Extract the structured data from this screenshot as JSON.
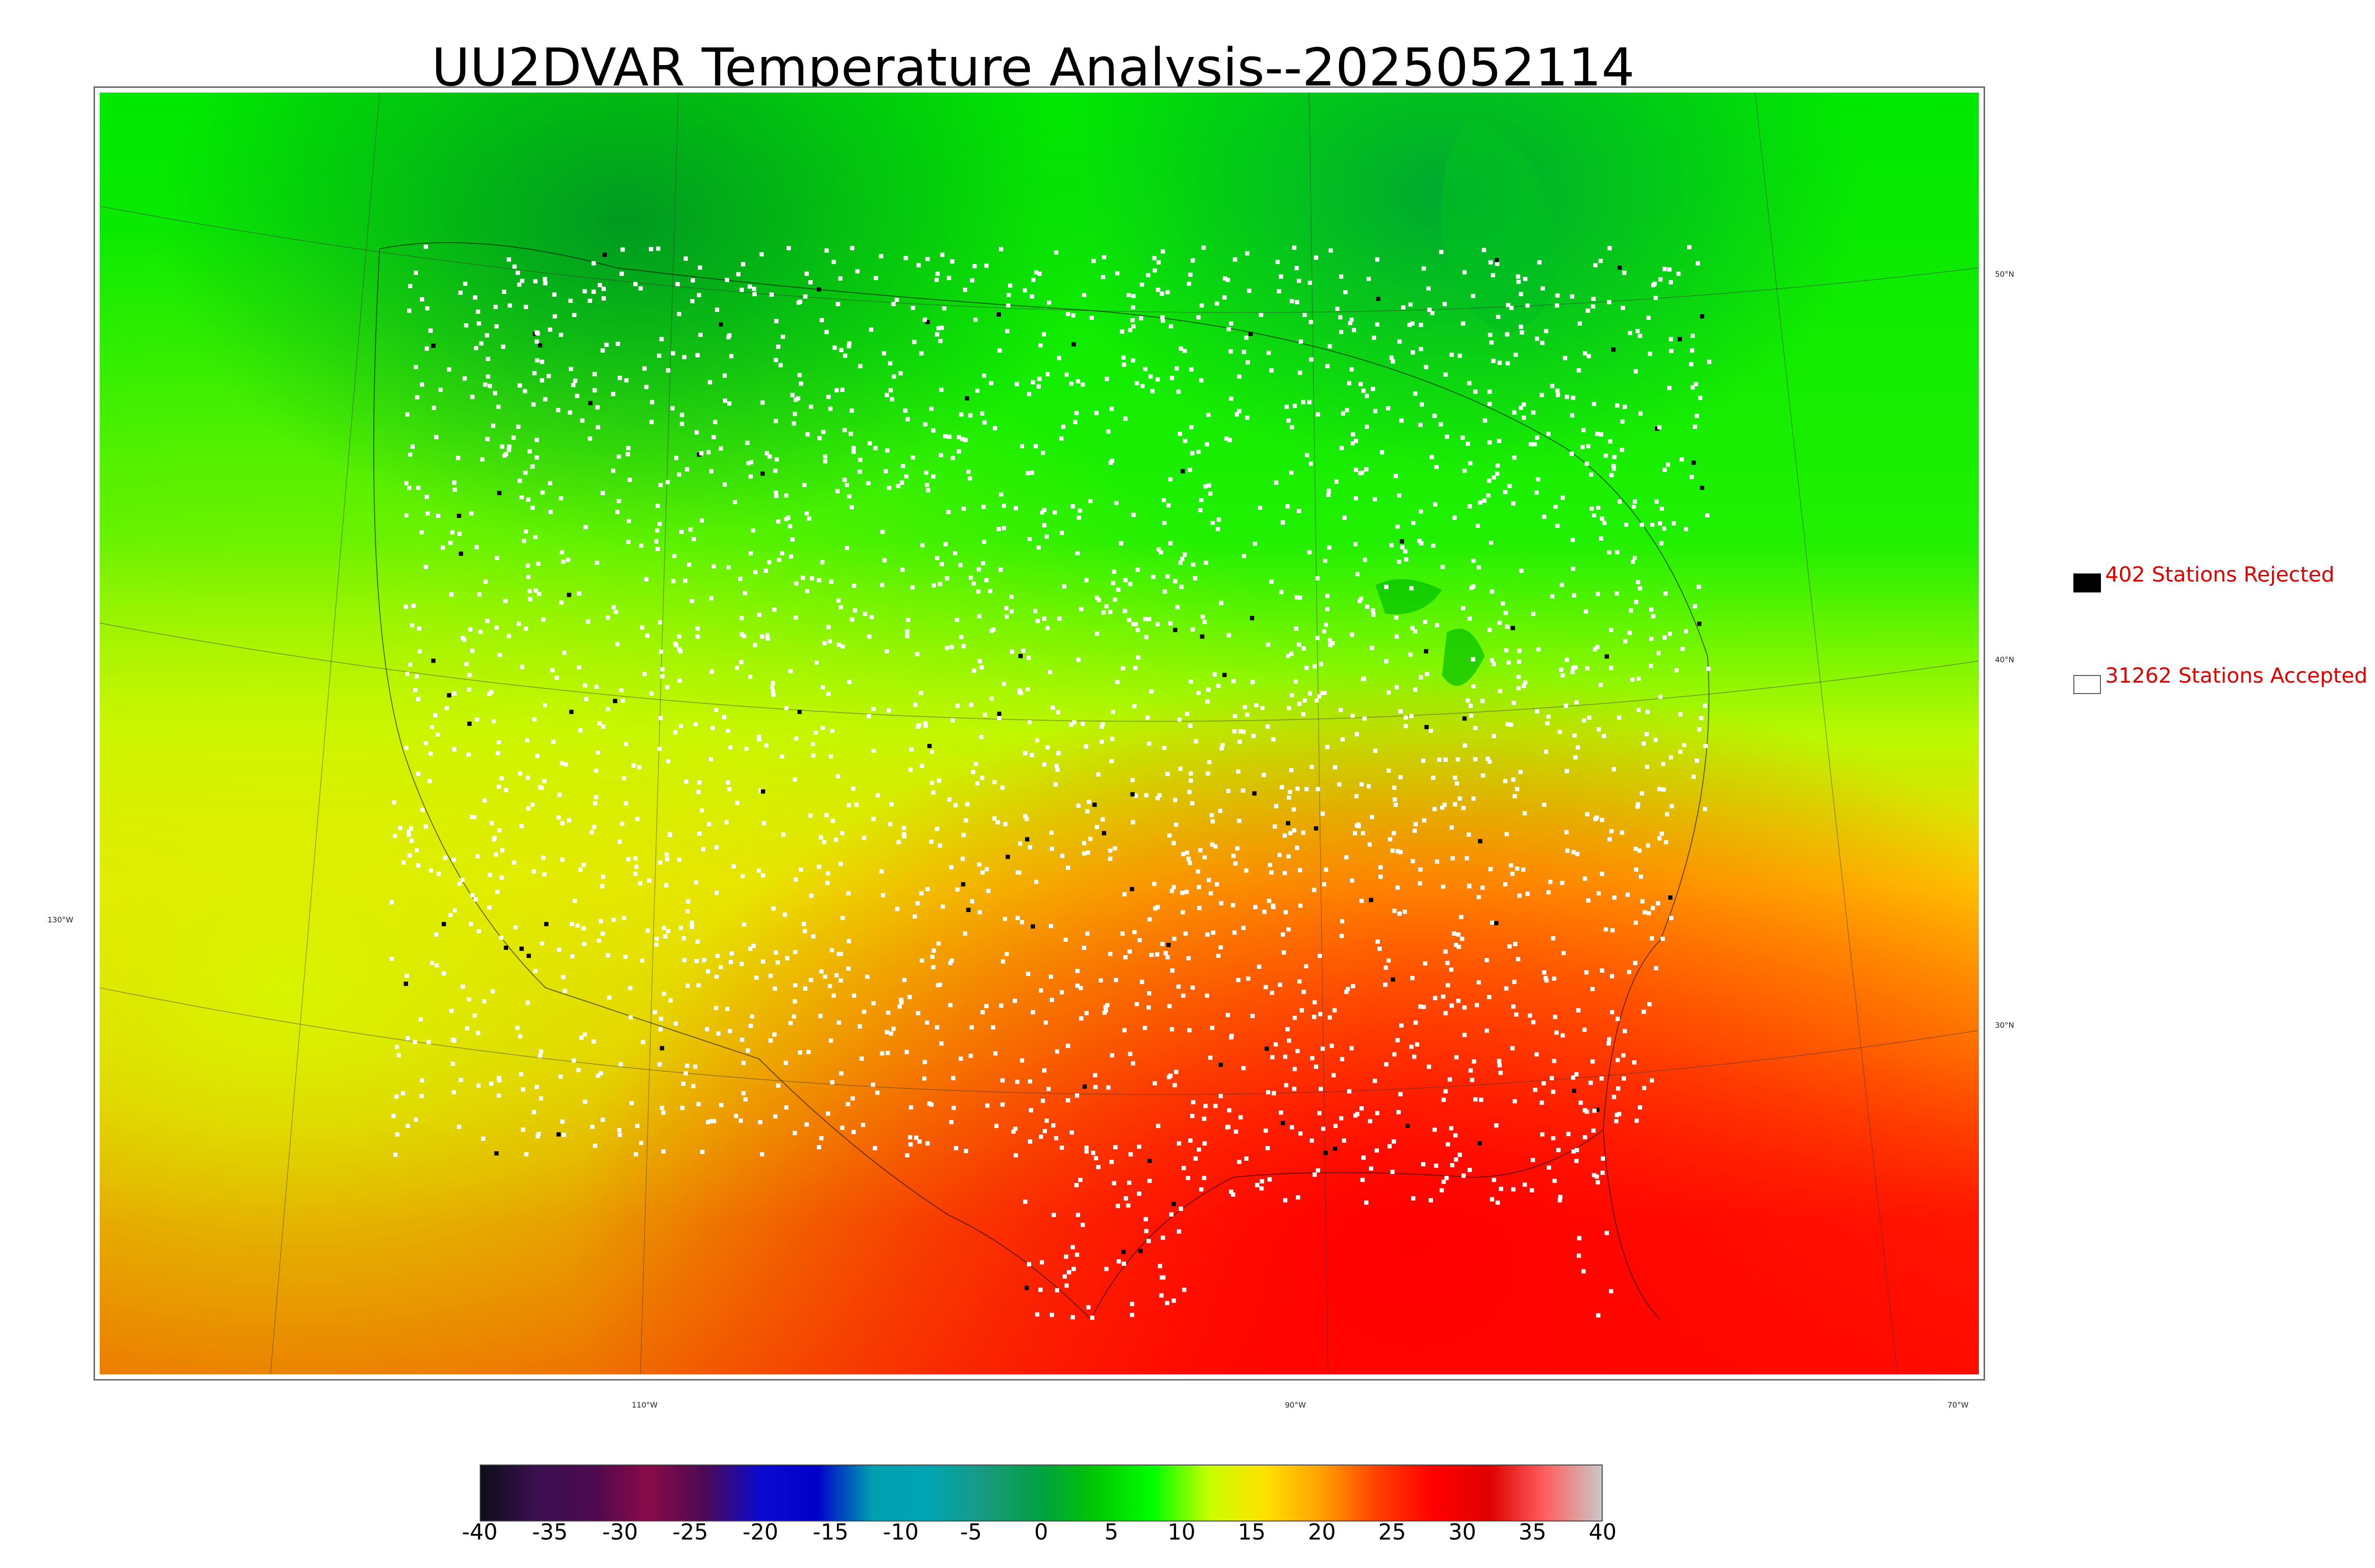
{
  "title": "UU2DVAR Temperature Analysis--2025052114",
  "map": {
    "lat_labels": [
      "50°N",
      "40°N",
      "30°N"
    ],
    "lon_labels": [
      "130°W",
      "110°W",
      "90°W",
      "70°W"
    ]
  },
  "legend": [
    {
      "label": "402 Stations Rejected",
      "swatch": "#000000"
    },
    {
      "label": "31262 Stations Accepted",
      "swatch": "#ffffff"
    }
  ],
  "colorbar": {
    "ticks": [
      "-40",
      "-35",
      "-30",
      "-25",
      "-20",
      "-15",
      "-10",
      "-5",
      "0",
      "5",
      "10",
      "15",
      "20",
      "25",
      "30",
      "35",
      "40"
    ],
    "colors": [
      "#0d0d1a",
      "#3a1050",
      "#4d0a4f",
      "#8a0a48",
      "#4d0a55",
      "#0a0ad0",
      "#0000c8",
      "#00a0b0",
      "#00a4b2",
      "#1a9a80",
      "#00a040",
      "#00c800",
      "#00ff00",
      "#c8ff00",
      "#ffe000",
      "#ffa000",
      "#ff4000",
      "#ff0000",
      "#e00000",
      "#ff6060",
      "#c8c8c8"
    ]
  },
  "colors": {
    "land_green": "#00e000",
    "ocean_yellow": "#e6f000",
    "hot_red": "#ff1a00",
    "legend_text": "#e00000"
  }
}
